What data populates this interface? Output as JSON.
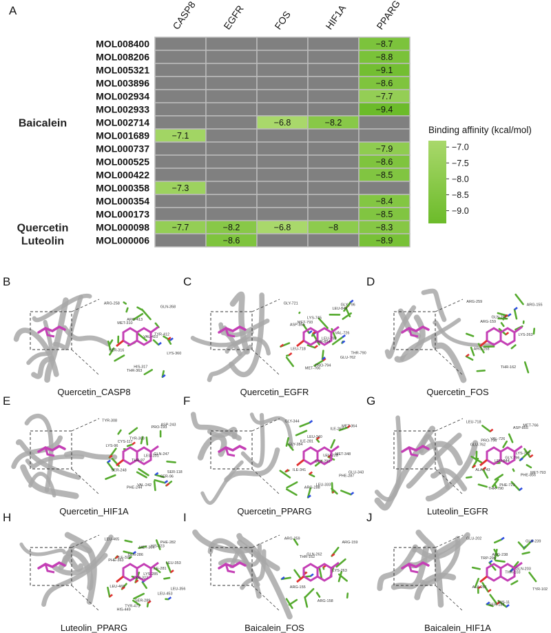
{
  "panel_a_label": "A",
  "chart_data": {
    "type": "heatmap",
    "columns": [
      "CASP8",
      "EGFR",
      "FOS",
      "HIF1A",
      "PPARG"
    ],
    "rows": [
      "MOL008400",
      "MOL008206",
      "MOL005321",
      "MOL003896",
      "MOL002934",
      "MOL002933",
      "MOL002714",
      "MOL001689",
      "MOL000737",
      "MOL000525",
      "MOL000422",
      "MOL000358",
      "MOL000354",
      "MOL000173",
      "MOL000098",
      "MOL000006"
    ],
    "groups": [
      {
        "label": "Baicalein",
        "center_row": 6
      },
      {
        "label": "Quercetin",
        "center_row": 14
      },
      {
        "label": "Luteolin",
        "center_row": 15
      }
    ],
    "values": [
      [
        null,
        null,
        null,
        null,
        -8.7
      ],
      [
        null,
        null,
        null,
        null,
        -8.8
      ],
      [
        null,
        null,
        null,
        null,
        -9.1
      ],
      [
        null,
        null,
        null,
        null,
        -8.6
      ],
      [
        null,
        null,
        null,
        null,
        -7.7
      ],
      [
        null,
        null,
        null,
        null,
        -9.4
      ],
      [
        null,
        null,
        -6.8,
        -8.2,
        null
      ],
      [
        -7.1,
        null,
        null,
        null,
        null
      ],
      [
        null,
        null,
        null,
        null,
        -7.9
      ],
      [
        null,
        null,
        null,
        null,
        -8.6
      ],
      [
        null,
        null,
        null,
        null,
        -8.5
      ],
      [
        -7.3,
        null,
        null,
        null,
        null
      ],
      [
        null,
        null,
        null,
        null,
        -8.4
      ],
      [
        null,
        null,
        null,
        null,
        -8.5
      ],
      [
        -7.7,
        -8.2,
        -6.8,
        -8,
        -8.3
      ],
      [
        null,
        -8.6,
        null,
        null,
        -8.9
      ]
    ],
    "colorbar": {
      "title": "Binding affinity (kcal/mol)",
      "ticks": [
        -7.0,
        -7.5,
        -8.0,
        -8.5,
        -9.0
      ],
      "tick_labels": [
        "−7.0",
        "−7.5",
        "−8.0",
        "−8.5",
        "−9.0"
      ],
      "range": [
        -6.8,
        -9.4
      ],
      "color_light": "#a9d86b",
      "color_dark": "#6cbb2a"
    },
    "missing_color": "#808080",
    "grid_color": "#bcbcbc"
  },
  "docking_panels": [
    {
      "letter": "B",
      "caption": "Quercetin_CASP8",
      "residues": [
        "ARG-258",
        "ARG-413",
        "TYR-412",
        "SER-316",
        "HIS-317",
        "GLN-358",
        "MET-310",
        "VAL-410",
        "LYS-360",
        "THR-363"
      ]
    },
    {
      "letter": "C",
      "caption": "Quercetin_EGFR",
      "residues": [
        "GLY-721",
        "LYS-745",
        "VAL-726",
        "LEU-718",
        "PRO-794",
        "GLY-796",
        "MET-793",
        "LEU-792",
        "THR-790",
        "MET-766",
        "LEU-844",
        "ASP-855",
        "THR-854",
        "GLU-762"
      ]
    },
    {
      "letter": "D",
      "caption": "Quercetin_FOS",
      "residues": [
        "ARG-259",
        "GLN-262",
        "LYS-263",
        "ARG-158",
        "THR-162",
        "ARG-155",
        "ARG-159"
      ]
    },
    {
      "letter": "E",
      "caption": "Quercetin_HIF1A",
      "residues": [
        "TYR-308",
        "TYR-303",
        "GLN-247",
        "SER-248",
        "VAL-242",
        "ASP-243",
        "CYS-117",
        "LEU-101",
        "SER-118",
        "PHE-244",
        "PRO-193",
        "LYS-96",
        "THR-97",
        "SER-96"
      ]
    },
    {
      "letter": "F",
      "caption": "Quercetin_PPARG",
      "residues": [
        "GLY-344",
        "LEU-340",
        "MET-348",
        "ILE-341",
        "LEU-333",
        "MET-364",
        "ILE-281",
        "LEU-228",
        "GLU-343",
        "ARG-288",
        "ILE-267",
        "GLY-284",
        "GLU-291",
        "PHE-287"
      ]
    },
    {
      "letter": "G",
      "caption": "Luteolin_EGFR",
      "residues": [
        "LEU-718",
        "VAL-726",
        "LYS-745",
        "ALA-743",
        "PHE-723",
        "MET-766",
        "PRO-794",
        "GLY-796",
        "MET-793",
        "THR-790",
        "ASP-855",
        "GLU-762",
        "LEU-844",
        "PHE-856"
      ]
    },
    {
      "letter": "H",
      "caption": "Luteolin_PPARG",
      "residues": [
        "LEU-465",
        "GLN-286",
        "ILE-281",
        "LEU-469",
        "SER-289",
        "PHE-282",
        "ILE-326",
        "LYS-285",
        "LEU-356",
        "TYR-473",
        "HIS-323",
        "PHE-363",
        "TYR-327",
        "LEU-453",
        "HIS-449",
        "MET-364",
        "LEU-353"
      ]
    },
    {
      "letter": "I",
      "caption": "Baicalein_FOS",
      "residues": [
        "ARG-259",
        "GLN-262",
        "LYS-263",
        "ARG-155",
        "ARG-158",
        "ARG-159",
        "THR-162"
      ]
    },
    {
      "letter": "J",
      "caption": "Baicalein_HIF1A",
      "residues": [
        "GLU-202",
        "ARG-238",
        "GLN-203",
        "ALA-281",
        "HIS-11",
        "GLN-239",
        "TRP-296",
        "THR-103",
        "TYR-102",
        "SER-184"
      ]
    }
  ],
  "colors": {
    "protein": "#a8a8a8",
    "residue": "#55aa2e",
    "ligand": "#c43fb5",
    "nitrogen": "#2e4de0",
    "oxygen": "#e03030"
  }
}
